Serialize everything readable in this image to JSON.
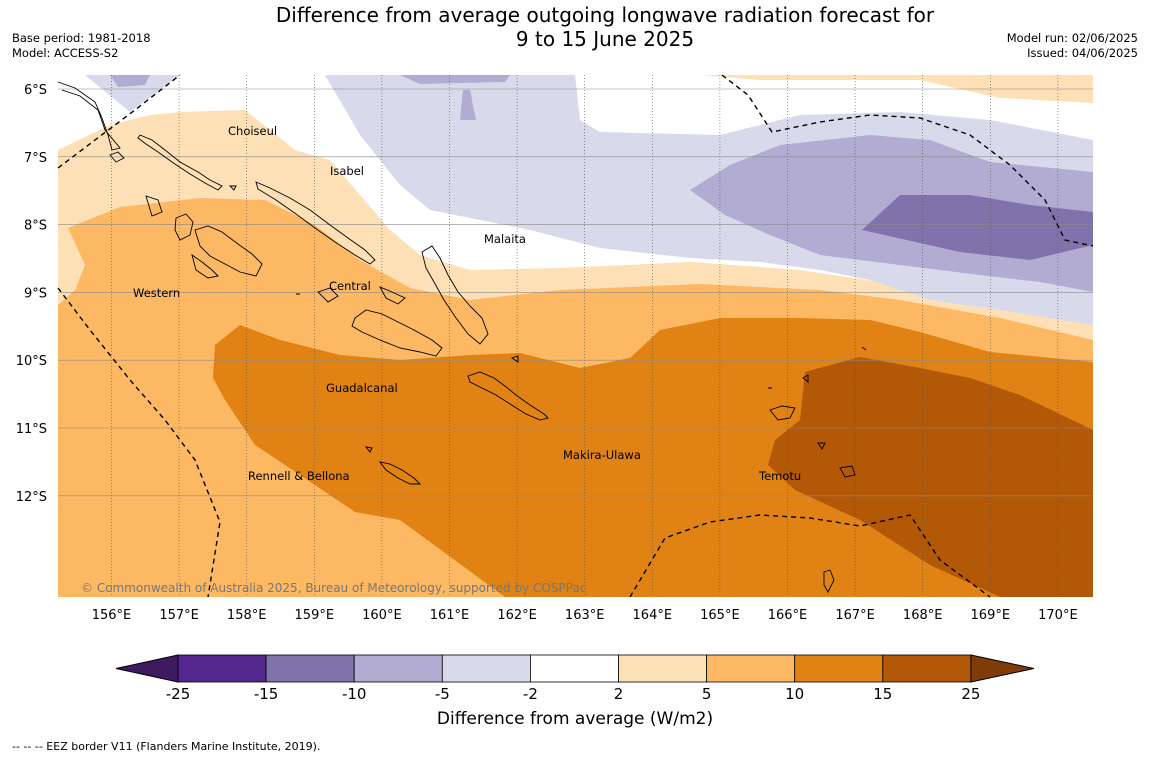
{
  "title_line1": "Difference from average outgoing longwave radiation forecast for",
  "title_line2": "9 to 15 June 2025",
  "meta_left": [
    "Base period: 1981-2018",
    "Model: ACCESS-S2"
  ],
  "meta_right": [
    "Model run: 02/06/2025",
    "Issued: 04/06/2025"
  ],
  "map": {
    "lat_labels": [
      "6°S",
      "7°S",
      "8°S",
      "9°S",
      "10°S",
      "11°S",
      "12°S"
    ],
    "lon_labels": [
      "156°E",
      "157°E",
      "158°E",
      "159°E",
      "160°E",
      "161°E",
      "162°E",
      "163°E",
      "164°E",
      "165°E",
      "166°E",
      "167°E",
      "168°E",
      "169°E",
      "170°E"
    ],
    "regions": [
      "Choiseul",
      "Isabel",
      "Malaita",
      "Western",
      "Central",
      "Guadalcanal",
      "Makira-Ulawa",
      "Rennell & Bellona",
      "Temotu"
    ],
    "copyright": "© Commonwealth of Australia 2025, Bureau of Meteorology, supported by COSPPac"
  },
  "colorbar": {
    "ticks": [
      "-25",
      "-15",
      "-10",
      "-5",
      "-2",
      "2",
      "5",
      "10",
      "15",
      "25"
    ],
    "colors": [
      "#3f1a5e",
      "#54278f",
      "#8073ac",
      "#b2abd2",
      "#d8daeb",
      "#ffffff",
      "#fee0b6",
      "#fdb863",
      "#e08214",
      "#b35806",
      "#7f3b08"
    ],
    "title": "Difference from average (W/m2)"
  },
  "footnote": "--  --  -- EEZ border V11 (Flanders Marine Institute, 2019)."
}
